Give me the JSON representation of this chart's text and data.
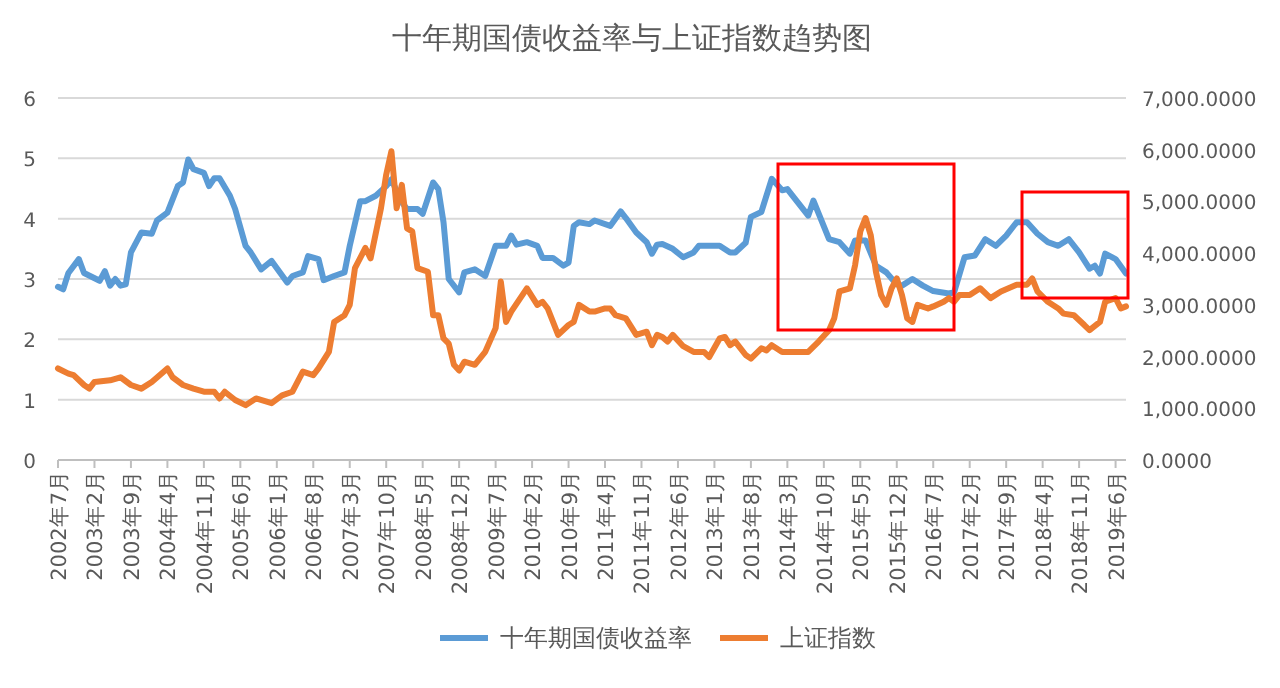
{
  "chart_data": {
    "type": "line",
    "title": "十年期国债收益率与上证指数趋势图",
    "series": [
      {
        "name": "十年期国债收益率",
        "color": "#5b9bd5",
        "x": [
          "2002-07",
          "2002-08",
          "2002-09",
          "2002-11",
          "2002-12",
          "2003-03",
          "2003-04",
          "2003-05",
          "2003-06",
          "2003-07",
          "2003-08",
          "2003-09",
          "2003-11",
          "2004-01",
          "2004-02",
          "2004-04",
          "2004-06",
          "2004-07",
          "2004-08",
          "2004-09",
          "2004-11",
          "2004-12",
          "2005-01",
          "2005-02",
          "2005-04",
          "2005-05",
          "2005-07",
          "2005-08",
          "2005-10",
          "2005-12",
          "2006-03",
          "2006-04",
          "2006-06",
          "2006-07",
          "2006-09",
          "2006-10",
          "2006-12",
          "2007-02",
          "2007-03",
          "2007-05",
          "2007-06",
          "2007-08",
          "2007-10",
          "2007-11",
          "2008-01",
          "2008-02",
          "2008-04",
          "2008-05",
          "2008-07",
          "2008-08",
          "2008-09",
          "2008-10",
          "2008-12",
          "2009-01",
          "2009-03",
          "2009-05",
          "2009-07",
          "2009-09",
          "2009-10",
          "2009-11",
          "2010-01",
          "2010-03",
          "2010-04",
          "2010-06",
          "2010-08",
          "2010-09",
          "2010-10",
          "2010-11",
          "2011-01",
          "2011-02",
          "2011-05",
          "2011-07",
          "2011-08",
          "2011-10",
          "2011-12",
          "2012-01",
          "2012-02",
          "2012-03",
          "2012-05",
          "2012-07",
          "2012-09",
          "2012-10",
          "2013-02",
          "2013-04",
          "2013-05",
          "2013-07",
          "2013-08",
          "2013-10",
          "2013-12",
          "2014-02",
          "2014-03",
          "2014-05",
          "2014-07",
          "2014-08",
          "2014-11",
          "2015-01",
          "2015-03",
          "2015-04",
          "2015-06",
          "2015-08",
          "2015-10",
          "2015-12",
          "2016-01",
          "2016-03",
          "2016-05",
          "2016-07",
          "2016-10",
          "2016-11",
          "2017-01",
          "2017-03",
          "2017-05",
          "2017-07",
          "2017-09",
          "2017-11",
          "2018-01",
          "2018-03",
          "2018-05",
          "2018-07",
          "2018-09",
          "2018-11",
          "2019-01",
          "2019-02",
          "2019-03",
          "2019-04",
          "2019-06",
          "2019-08"
        ],
        "values": [
          2.87,
          2.83,
          3.1,
          3.33,
          3.1,
          2.97,
          3.13,
          2.89,
          3.0,
          2.89,
          2.91,
          3.44,
          3.77,
          3.75,
          3.97,
          4.1,
          4.54,
          4.6,
          4.98,
          4.82,
          4.76,
          4.54,
          4.67,
          4.67,
          4.38,
          4.16,
          3.55,
          3.44,
          3.16,
          3.3,
          2.94,
          3.05,
          3.11,
          3.38,
          3.33,
          2.98,
          3.05,
          3.11,
          3.55,
          4.29,
          4.29,
          4.38,
          4.54,
          4.65,
          4.27,
          4.16,
          4.16,
          4.08,
          4.6,
          4.49,
          3.94,
          3.0,
          2.78,
          3.11,
          3.16,
          3.05,
          3.55,
          3.55,
          3.72,
          3.57,
          3.61,
          3.55,
          3.35,
          3.35,
          3.22,
          3.27,
          3.88,
          3.94,
          3.91,
          3.97,
          3.88,
          4.12,
          4.01,
          3.77,
          3.61,
          3.42,
          3.57,
          3.58,
          3.5,
          3.36,
          3.44,
          3.55,
          3.55,
          3.44,
          3.44,
          3.6,
          4.03,
          4.11,
          4.66,
          4.47,
          4.49,
          4.27,
          4.05,
          4.3,
          3.66,
          3.61,
          3.42,
          3.64,
          3.64,
          3.22,
          3.11,
          2.91,
          2.89,
          3.0,
          2.89,
          2.8,
          2.76,
          2.78,
          3.36,
          3.39,
          3.66,
          3.55,
          3.72,
          3.94,
          3.94,
          3.75,
          3.61,
          3.55,
          3.66,
          3.44,
          3.17,
          3.22,
          3.09,
          3.42,
          3.33,
          3.09
        ]
      },
      {
        "name": "上证指数",
        "color": "#ed7d31",
        "axis": "y2",
        "x": [
          "2002-07",
          "2002-09",
          "2002-10",
          "2002-12",
          "2003-01",
          "2003-02",
          "2003-05",
          "2003-07",
          "2003-09",
          "2003-11",
          "2004-01",
          "2004-04",
          "2004-05",
          "2004-07",
          "2004-09",
          "2004-11",
          "2005-01",
          "2005-02",
          "2005-03",
          "2005-05",
          "2005-07",
          "2005-09",
          "2005-12",
          "2006-02",
          "2006-04",
          "2006-06",
          "2006-08",
          "2006-09",
          "2006-11",
          "2006-12",
          "2007-02",
          "2007-03",
          "2007-04",
          "2007-06",
          "2007-07",
          "2007-09",
          "2007-10",
          "2007-11",
          "2007-12",
          "2008-01",
          "2008-02",
          "2008-03",
          "2008-04",
          "2008-06",
          "2008-07",
          "2008-08",
          "2008-09",
          "2008-10",
          "2008-11",
          "2008-12",
          "2009-01",
          "2009-03",
          "2009-05",
          "2009-07",
          "2009-08",
          "2009-09",
          "2009-10",
          "2010-01",
          "2010-03",
          "2010-04",
          "2010-05",
          "2010-07",
          "2010-09",
          "2010-10",
          "2010-11",
          "2011-01",
          "2011-02",
          "2011-04",
          "2011-05",
          "2011-06",
          "2011-08",
          "2011-10",
          "2011-12",
          "2012-01",
          "2012-02",
          "2012-03",
          "2012-04",
          "2012-05",
          "2012-07",
          "2012-09",
          "2012-11",
          "2012-12",
          "2013-02",
          "2013-03",
          "2013-04",
          "2013-05",
          "2013-07",
          "2013-08",
          "2013-10",
          "2013-11",
          "2013-12",
          "2014-02",
          "2014-04",
          "2014-07",
          "2014-09",
          "2014-11",
          "2014-12",
          "2015-01",
          "2015-03",
          "2015-04",
          "2015-05",
          "2015-06",
          "2015-07",
          "2015-08",
          "2015-09",
          "2015-10",
          "2015-11",
          "2015-12",
          "2016-01",
          "2016-02",
          "2016-03",
          "2016-04",
          "2016-06",
          "2016-07",
          "2016-09",
          "2016-10",
          "2016-11",
          "2016-12",
          "2017-02",
          "2017-04",
          "2017-06",
          "2017-08",
          "2017-11",
          "2018-01",
          "2018-02",
          "2018-03",
          "2018-05",
          "2018-07",
          "2018-08",
          "2018-10",
          "2018-12",
          "2019-01",
          "2019-03",
          "2019-04",
          "2019-06",
          "2019-07",
          "2019-08"
        ],
        "values": [
          1770,
          1670,
          1640,
          1450,
          1380,
          1510,
          1540,
          1600,
          1450,
          1380,
          1510,
          1770,
          1600,
          1450,
          1380,
          1320,
          1320,
          1190,
          1320,
          1160,
          1060,
          1190,
          1100,
          1250,
          1320,
          1710,
          1640,
          1770,
          2090,
          2670,
          2800,
          3000,
          3710,
          4100,
          3900,
          4870,
          5520,
          5970,
          4870,
          5320,
          4480,
          4420,
          3710,
          3640,
          2800,
          2800,
          2350,
          2250,
          1840,
          1730,
          1900,
          1840,
          2090,
          2550,
          3450,
          2670,
          2870,
          3320,
          3000,
          3060,
          2930,
          2420,
          2610,
          2670,
          3000,
          2870,
          2870,
          2930,
          2930,
          2800,
          2740,
          2420,
          2480,
          2220,
          2420,
          2380,
          2290,
          2420,
          2200,
          2090,
          2090,
          1990,
          2350,
          2380,
          2220,
          2290,
          2030,
          1960,
          2160,
          2120,
          2220,
          2090,
          2090,
          2090,
          2290,
          2510,
          2740,
          3260,
          3320,
          3770,
          4420,
          4680,
          4350,
          3640,
          3190,
          3000,
          3320,
          3510,
          3190,
          2740,
          2670,
          3000,
          2930,
          2970,
          3060,
          3130,
          3060,
          3190,
          3190,
          3320,
          3130,
          3260,
          3390,
          3390,
          3510,
          3260,
          3060,
          2930,
          2830,
          2800,
          2610,
          2510,
          2670,
          3060,
          3130,
          2930,
          2970
        ]
      }
    ],
    "xlim": [
      "2002-07",
      "2019-08"
    ],
    "xticks": [
      {
        "value": "2002-07",
        "label": "2002年7月"
      },
      {
        "value": "2003-02",
        "label": "2003年2月"
      },
      {
        "value": "2003-09",
        "label": "2003年9月"
      },
      {
        "value": "2004-04",
        "label": "2004年4月"
      },
      {
        "value": "2004-11",
        "label": "2004年11月"
      },
      {
        "value": "2005-06",
        "label": "2005年6月"
      },
      {
        "value": "2006-01",
        "label": "2006年1月"
      },
      {
        "value": "2006-08",
        "label": "2006年8月"
      },
      {
        "value": "2007-03",
        "label": "2007年3月"
      },
      {
        "value": "2007-10",
        "label": "2007年10月"
      },
      {
        "value": "2008-05",
        "label": "2008年5月"
      },
      {
        "value": "2008-12",
        "label": "2008年12月"
      },
      {
        "value": "2009-07",
        "label": "2009年7月"
      },
      {
        "value": "2010-02",
        "label": "2010年2月"
      },
      {
        "value": "2010-09",
        "label": "2010年9月"
      },
      {
        "value": "2011-04",
        "label": "2011年4月"
      },
      {
        "value": "2011-11",
        "label": "2011年11月"
      },
      {
        "value": "2012-06",
        "label": "2012年6月"
      },
      {
        "value": "2013-01",
        "label": "2013年1月"
      },
      {
        "value": "2013-08",
        "label": "2013年8月"
      },
      {
        "value": "2014-03",
        "label": "2014年3月"
      },
      {
        "value": "2014-10",
        "label": "2014年10月"
      },
      {
        "value": "2015-05",
        "label": "2015年5月"
      },
      {
        "value": "2015-12",
        "label": "2015年12月"
      },
      {
        "value": "2016-07",
        "label": "2016年7月"
      },
      {
        "value": "2017-02",
        "label": "2017年2月"
      },
      {
        "value": "2017-09",
        "label": "2017年9月"
      },
      {
        "value": "2018-04",
        "label": "2018年4月"
      },
      {
        "value": "2018-11",
        "label": "2018年11月"
      },
      {
        "value": "2019-06",
        "label": "2019年6月"
      }
    ],
    "ylim": [
      0,
      6
    ],
    "yticks": [
      0,
      1,
      2,
      3,
      4,
      5,
      6
    ],
    "y2lim": [
      0,
      7000
    ],
    "y2ticks": [
      {
        "value": 0,
        "label": "0.0000"
      },
      {
        "value": 1000,
        "label": "1,000.0000"
      },
      {
        "value": 2000,
        "label": "2,000.0000"
      },
      {
        "value": 3000,
        "label": "3,000.0000"
      },
      {
        "value": 4000,
        "label": "4,000.0000"
      },
      {
        "value": 5000,
        "label": "5,000.0000"
      },
      {
        "value": 6000,
        "label": "6,000.0000"
      },
      {
        "value": 7000,
        "label": "7,000.0000"
      }
    ],
    "grid": "y",
    "legend": "bottom",
    "marker": "none",
    "line_style": "solid"
  }
}
